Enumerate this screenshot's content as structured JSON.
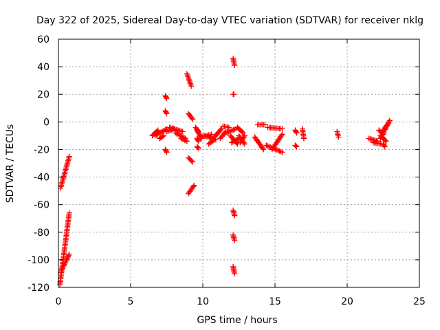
{
  "chart_data": {
    "type": "scatter",
    "title": "Day 322 of 2025, Sidereal Day-to-day VTEC variation (SDTVAR) for receiver nklg",
    "xlabel": "GPS time / hours",
    "ylabel": "SDTVAR / TECUs",
    "xlim": [
      0,
      25
    ],
    "ylim": [
      -120,
      60
    ],
    "xticks": [
      0,
      5,
      10,
      15,
      20,
      25
    ],
    "yticks": [
      -120,
      -100,
      -80,
      -60,
      -40,
      -20,
      0,
      20,
      40,
      60
    ],
    "grid": true,
    "legend": "none",
    "marker": "plus",
    "color": "#ff0000",
    "segments": [
      [
        [
          0.15,
          -48
        ],
        [
          0.75,
          -25
        ]
      ],
      [
        [
          0.1,
          -118
        ],
        [
          0.75,
          -66
        ]
      ],
      [
        [
          0.2,
          -108
        ],
        [
          0.75,
          -96
        ]
      ],
      [
        [
          6.5,
          -10
        ],
        [
          6.9,
          -6
        ]
      ],
      [
        [
          6.7,
          -10
        ],
        [
          7.5,
          -5
        ]
      ],
      [
        [
          7.0,
          -12
        ],
        [
          7.3,
          -10
        ]
      ],
      [
        [
          7.4,
          19
        ],
        [
          7.5,
          17
        ]
      ],
      [
        [
          7.4,
          8
        ],
        [
          7.5,
          6
        ]
      ],
      [
        [
          7.4,
          -20
        ],
        [
          7.5,
          -22
        ]
      ],
      [
        [
          7.5,
          -7
        ],
        [
          8.0,
          -5
        ]
      ],
      [
        [
          7.7,
          -4
        ],
        [
          8.6,
          -7
        ]
      ],
      [
        [
          8.1,
          -8
        ],
        [
          8.8,
          -12
        ]
      ],
      [
        [
          8.5,
          -12
        ],
        [
          8.9,
          -14
        ]
      ],
      [
        [
          8.9,
          35
        ],
        [
          9.2,
          26
        ]
      ],
      [
        [
          9.0,
          6
        ],
        [
          9.3,
          2
        ]
      ],
      [
        [
          9.0,
          -26
        ],
        [
          9.3,
          -29
        ]
      ],
      [
        [
          9.0,
          -52
        ],
        [
          9.4,
          -46
        ]
      ],
      [
        [
          9.5,
          -4
        ],
        [
          9.7,
          -7
        ]
      ],
      [
        [
          9.6,
          -12
        ],
        [
          9.7,
          -14
        ]
      ],
      [
        [
          9.6,
          -18
        ],
        [
          9.7,
          -19
        ]
      ],
      [
        [
          9.6,
          -6
        ],
        [
          9.9,
          -12
        ]
      ],
      [
        [
          9.8,
          -11
        ],
        [
          10.6,
          -9
        ]
      ],
      [
        [
          10.1,
          -10
        ],
        [
          10.9,
          -13
        ]
      ],
      [
        [
          10.4,
          -16
        ],
        [
          10.8,
          -13
        ]
      ],
      [
        [
          10.8,
          -11
        ],
        [
          11.3,
          -5
        ]
      ],
      [
        [
          11.2,
          -12
        ],
        [
          11.6,
          -7
        ]
      ],
      [
        [
          11.4,
          -3
        ],
        [
          11.8,
          -4
        ]
      ],
      [
        [
          11.6,
          -8
        ],
        [
          12.3,
          -5
        ]
      ],
      [
        [
          12.1,
          46
        ],
        [
          12.2,
          41
        ]
      ],
      [
        [
          12.1,
          20
        ],
        [
          12.15,
          20
        ]
      ],
      [
        [
          12.1,
          -64
        ],
        [
          12.2,
          -68
        ]
      ],
      [
        [
          12.1,
          -82
        ],
        [
          12.2,
          -86
        ]
      ],
      [
        [
          12.1,
          -105
        ],
        [
          12.2,
          -110
        ]
      ],
      [
        [
          11.9,
          -10
        ],
        [
          12.4,
          -16
        ]
      ],
      [
        [
          12.0,
          -15
        ],
        [
          12.5,
          -12
        ]
      ],
      [
        [
          12.4,
          -4
        ],
        [
          12.8,
          -8
        ]
      ],
      [
        [
          12.5,
          -10
        ],
        [
          12.9,
          -16
        ]
      ],
      [
        [
          12.6,
          -15
        ],
        [
          12.9,
          -10
        ]
      ],
      [
        [
          13.6,
          -11
        ],
        [
          14.2,
          -20
        ]
      ],
      [
        [
          13.8,
          -2
        ],
        [
          14.3,
          -2
        ]
      ],
      [
        [
          14.5,
          -4
        ],
        [
          15.5,
          -5
        ]
      ],
      [
        [
          14.4,
          -17
        ],
        [
          15.5,
          -22
        ]
      ],
      [
        [
          14.8,
          -20
        ],
        [
          15.5,
          -9
        ]
      ],
      [
        [
          16.4,
          -6
        ],
        [
          16.5,
          -8
        ]
      ],
      [
        [
          16.4,
          -17
        ],
        [
          16.5,
          -18
        ]
      ],
      [
        [
          16.9,
          -5
        ],
        [
          17.0,
          -12
        ]
      ],
      [
        [
          19.3,
          -7
        ],
        [
          19.4,
          -11
        ]
      ],
      [
        [
          21.5,
          -12
        ],
        [
          22.1,
          -14
        ]
      ],
      [
        [
          21.8,
          -15
        ],
        [
          22.4,
          -16
        ]
      ],
      [
        [
          22.2,
          -6
        ],
        [
          22.5,
          -9
        ]
      ],
      [
        [
          22.3,
          -10
        ],
        [
          22.7,
          -14
        ]
      ],
      [
        [
          22.5,
          -16
        ],
        [
          22.6,
          -18
        ]
      ],
      [
        [
          22.3,
          -12
        ],
        [
          22.95,
          1
        ]
      ],
      [
        [
          22.5,
          -6
        ],
        [
          22.9,
          0
        ]
      ]
    ]
  }
}
